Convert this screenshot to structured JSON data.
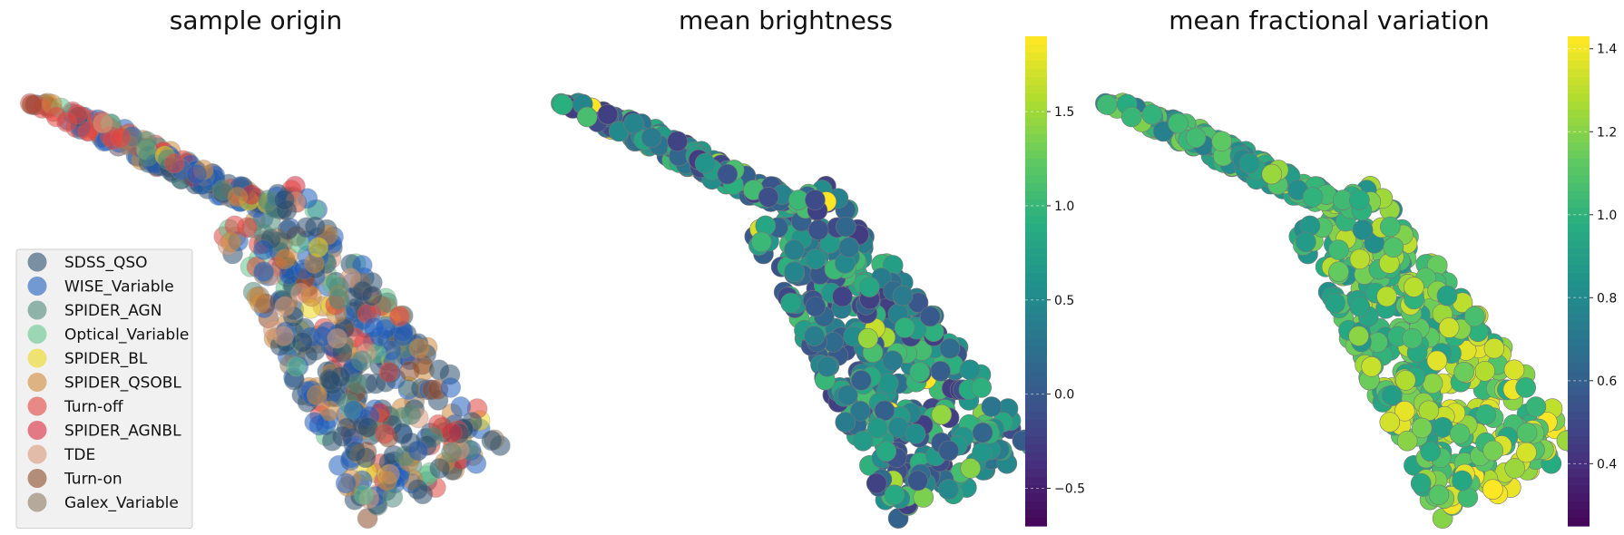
{
  "chart_data": [
    {
      "type": "scatter",
      "title": "sample origin",
      "color_by": "category",
      "legend": {
        "placement": "lower-left",
        "entries": [
          {
            "name": "SDSS_QSO",
            "color": "#2c4f6e"
          },
          {
            "name": "WISE_Variable",
            "color": "#1f5fbf"
          },
          {
            "name": "SPIDER_AGN",
            "color": "#4f8a78"
          },
          {
            "name": "Optical_Variable",
            "color": "#63c48e"
          },
          {
            "name": "SPIDER_BL",
            "color": "#ecd81e"
          },
          {
            "name": "SPIDER_QSOBL",
            "color": "#d08a3a"
          },
          {
            "name": "Turn-off",
            "color": "#e2453f"
          },
          {
            "name": "SPIDER_AGNBL",
            "color": "#d92a3c"
          },
          {
            "name": "TDE",
            "color": "#d99a7a"
          },
          {
            "name": "Turn-on",
            "color": "#8c4a2c"
          },
          {
            "name": "Galex_Variable",
            "color": "#8c7a60"
          }
        ]
      },
      "axes_visible": false
    },
    {
      "type": "scatter",
      "title": "mean brightness",
      "color_by": "continuous",
      "colormap": "viridis",
      "colorbar": {
        "min": -0.7,
        "max": 1.9,
        "ticks": [
          "1.5",
          "1.0",
          "0.5",
          "0.0",
          "−0.5"
        ],
        "tick_values": [
          1.5,
          1.0,
          0.5,
          0.0,
          -0.5
        ]
      },
      "axes_visible": false
    },
    {
      "type": "scatter",
      "title": "mean fractional variation",
      "color_by": "continuous",
      "colormap": "viridis",
      "colorbar": {
        "min": 0.25,
        "max": 1.43,
        "ticks": [
          "1.4",
          "1.2",
          "1.0",
          "0.8",
          "0.6",
          "0.4"
        ],
        "tick_values": [
          1.4,
          1.2,
          1.0,
          0.8,
          0.6,
          0.4
        ]
      },
      "axes_visible": false
    }
  ],
  "colors": {
    "viridis": [
      "#440154",
      "#472d7b",
      "#3b528b",
      "#2c728e",
      "#21918c",
      "#28ae80",
      "#5ec962",
      "#addc30",
      "#fde725"
    ],
    "legend_bg": "#f0f0f0"
  }
}
